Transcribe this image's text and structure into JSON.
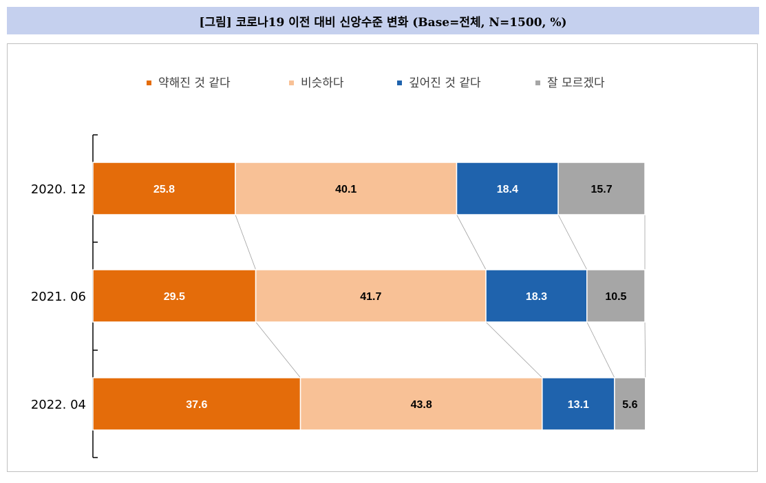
{
  "title": "[그림] 코로나19 이전 대비 신앙수준 변화  (Base=전체, N=1500, %)",
  "chart_data": {
    "type": "bar",
    "orientation": "horizontal",
    "stacked": true,
    "stack_total": 100,
    "categories": [
      "2020. 12",
      "2021. 06",
      "2022. 04"
    ],
    "series": [
      {
        "name": "약해진 것 같다",
        "color": "#e46c0a",
        "label_color": "#ffffff",
        "values": [
          25.8,
          29.5,
          37.6
        ]
      },
      {
        "name": "비슷하다",
        "color": "#f8c196",
        "label_color": "#000000",
        "values": [
          40.1,
          41.7,
          43.8
        ]
      },
      {
        "name": "깊어진 것 같다",
        "color": "#1f63ad",
        "label_color": "#ffffff",
        "values": [
          18.4,
          18.3,
          13.1
        ]
      },
      {
        "name": "잘 모르겠다",
        "color": "#a6a6a6",
        "label_color": "#000000",
        "values": [
          15.7,
          10.5,
          5.6
        ]
      }
    ],
    "legend_position": "top",
    "series_lines": true,
    "grid": false
  }
}
